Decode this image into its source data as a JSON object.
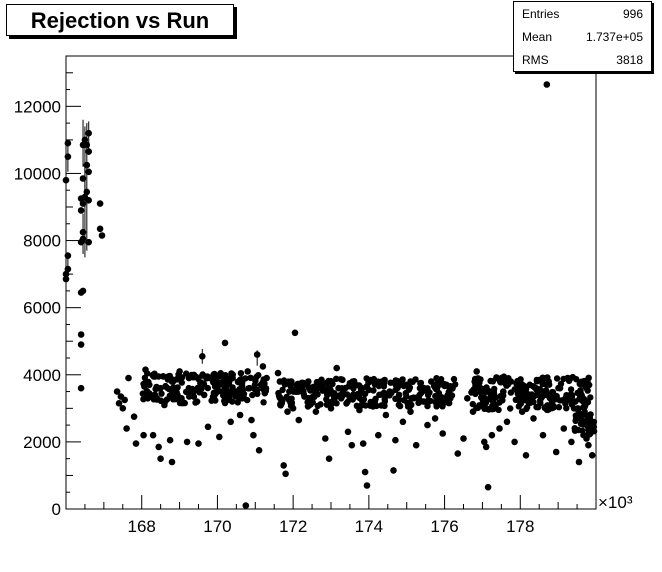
{
  "title": "Rejection vs Run",
  "stats": {
    "entries_label": "Entries",
    "entries_value": "996",
    "mean_label": "Mean",
    "mean_value": "1.737e+05",
    "rms_label": "RMS",
    "rms_value": "3818"
  },
  "chart_data": {
    "type": "scatter",
    "title": "Rejection vs Run",
    "xlabel": "",
    "ylabel": "",
    "x_exponent_label": "×10³",
    "xlim": [
      166.0,
      180.0
    ],
    "ylim": [
      0,
      13500
    ],
    "x_ticks": [
      168,
      170,
      172,
      174,
      176,
      178
    ],
    "y_ticks": [
      0,
      2000,
      4000,
      6000,
      8000,
      10000,
      12000
    ],
    "grid": false,
    "legend": "none",
    "marker_color": "#000000",
    "points": [
      [
        166.0,
        7000
      ],
      [
        166.0,
        6850
      ],
      [
        166.05,
        7550
      ],
      [
        166.05,
        7150
      ],
      [
        166.0,
        9800
      ],
      [
        166.05,
        10500
      ],
      [
        166.05,
        10900
      ],
      [
        166.4,
        3600
      ],
      [
        166.4,
        4900
      ],
      [
        166.4,
        5200
      ],
      [
        166.4,
        6450
      ],
      [
        166.45,
        6500
      ],
      [
        166.4,
        7950
      ],
      [
        166.45,
        8250
      ],
      [
        166.45,
        8050
      ],
      [
        166.4,
        8900
      ],
      [
        166.45,
        9100
      ],
      [
        166.4,
        9250
      ],
      [
        166.45,
        9850
      ],
      [
        166.5,
        9300
      ],
      [
        166.45,
        10850
      ],
      [
        166.5,
        11000
      ],
      [
        166.55,
        10850
      ],
      [
        166.6,
        11200
      ],
      [
        166.55,
        10250
      ],
      [
        166.6,
        10050
      ],
      [
        166.6,
        10650
      ],
      [
        166.55,
        9450
      ],
      [
        166.6,
        9200
      ],
      [
        166.6,
        7950
      ],
      [
        166.9,
        9100
      ],
      [
        166.9,
        8350
      ],
      [
        166.95,
        8150
      ],
      [
        167.35,
        3500
      ],
      [
        167.4,
        3150
      ],
      [
        167.45,
        3350
      ],
      [
        167.5,
        3000
      ],
      [
        167.55,
        3250
      ],
      [
        167.6,
        2400
      ],
      [
        167.65,
        3900
      ],
      [
        167.8,
        2750
      ],
      [
        167.85,
        1950
      ],
      [
        168.05,
        2200
      ],
      [
        168.1,
        4150
      ],
      [
        168.15,
        3400
      ],
      [
        168.2,
        3700
      ],
      [
        168.3,
        2200
      ],
      [
        168.35,
        3950
      ],
      [
        168.4,
        3300
      ],
      [
        168.45,
        1850
      ],
      [
        168.5,
        3600
      ],
      [
        168.5,
        1500
      ],
      [
        168.6,
        3100
      ],
      [
        168.7,
        3950
      ],
      [
        168.75,
        2050
      ],
      [
        168.8,
        3800
      ],
      [
        168.8,
        1400
      ],
      [
        168.9,
        3600
      ],
      [
        169.0,
        4100
      ],
      [
        169.05,
        3300
      ],
      [
        169.2,
        2000
      ],
      [
        169.25,
        3900
      ],
      [
        169.3,
        3550
      ],
      [
        169.5,
        1950
      ],
      [
        169.55,
        3750
      ],
      [
        169.6,
        4550
      ],
      [
        169.65,
        3400
      ],
      [
        169.75,
        2450
      ],
      [
        169.8,
        3900
      ],
      [
        169.9,
        4000
      ],
      [
        170.0,
        3600
      ],
      [
        170.05,
        2150
      ],
      [
        170.15,
        3800
      ],
      [
        170.2,
        4950
      ],
      [
        170.25,
        3300
      ],
      [
        170.35,
        2600
      ],
      [
        170.4,
        3900
      ],
      [
        170.45,
        3500
      ],
      [
        170.6,
        2800
      ],
      [
        170.65,
        3300
      ],
      [
        170.75,
        100
      ],
      [
        170.8,
        4100
      ],
      [
        170.85,
        3600
      ],
      [
        170.9,
        2650
      ],
      [
        170.95,
        2200
      ],
      [
        171.05,
        4600
      ],
      [
        171.1,
        1750
      ],
      [
        171.15,
        3700
      ],
      [
        171.2,
        4250
      ],
      [
        171.25,
        3450
      ],
      [
        171.3,
        3900
      ],
      [
        171.6,
        4050
      ],
      [
        171.65,
        3800
      ],
      [
        171.75,
        1300
      ],
      [
        171.8,
        1050
      ],
      [
        171.85,
        2900
      ],
      [
        171.9,
        3500
      ],
      [
        172.0,
        3000
      ],
      [
        172.05,
        5250
      ],
      [
        172.1,
        3700
      ],
      [
        172.15,
        2650
      ],
      [
        172.3,
        3350
      ],
      [
        172.4,
        3800
      ],
      [
        172.6,
        2900
      ],
      [
        172.75,
        3850
      ],
      [
        172.85,
        2100
      ],
      [
        172.9,
        3400
      ],
      [
        172.95,
        1500
      ],
      [
        173.0,
        3000
      ],
      [
        173.15,
        4200
      ],
      [
        173.2,
        3600
      ],
      [
        173.3,
        3850
      ],
      [
        173.45,
        2300
      ],
      [
        173.5,
        3300
      ],
      [
        173.55,
        1900
      ],
      [
        173.65,
        3700
      ],
      [
        173.75,
        2950
      ],
      [
        173.85,
        1950
      ],
      [
        173.9,
        1100
      ],
      [
        173.95,
        700
      ],
      [
        174.0,
        3550
      ],
      [
        174.15,
        3200
      ],
      [
        174.25,
        2200
      ],
      [
        174.4,
        3750
      ],
      [
        174.45,
        2800
      ],
      [
        174.55,
        3500
      ],
      [
        174.65,
        1150
      ],
      [
        174.7,
        2050
      ],
      [
        174.8,
        3400
      ],
      [
        174.9,
        2600
      ],
      [
        175.0,
        3700
      ],
      [
        175.1,
        2900
      ],
      [
        175.25,
        1900
      ],
      [
        175.35,
        3600
      ],
      [
        175.45,
        3200
      ],
      [
        175.55,
        2500
      ],
      [
        175.65,
        3800
      ],
      [
        175.75,
        2700
      ],
      [
        175.85,
        3450
      ],
      [
        175.95,
        2250
      ],
      [
        176.05,
        3700
      ],
      [
        176.15,
        3300
      ],
      [
        176.35,
        1650
      ],
      [
        176.5,
        2100
      ],
      [
        176.6,
        3300
      ],
      [
        176.75,
        2900
      ],
      [
        176.85,
        4100
      ],
      [
        176.95,
        3600
      ],
      [
        177.05,
        2000
      ],
      [
        177.1,
        1850
      ],
      [
        177.15,
        650
      ],
      [
        177.25,
        2200
      ],
      [
        177.35,
        3100
      ],
      [
        177.45,
        2400
      ],
      [
        177.55,
        3500
      ],
      [
        177.65,
        2600
      ],
      [
        177.75,
        3800
      ],
      [
        177.85,
        2000
      ],
      [
        177.95,
        3300
      ],
      [
        178.05,
        2900
      ],
      [
        178.15,
        1600
      ],
      [
        178.25,
        3700
      ],
      [
        178.35,
        2700
      ],
      [
        178.45,
        3400
      ],
      [
        178.6,
        2200
      ],
      [
        178.7,
        12650
      ],
      [
        178.75,
        3800
      ],
      [
        178.85,
        3100
      ],
      [
        178.95,
        1700
      ],
      [
        179.05,
        3600
      ],
      [
        179.15,
        2400
      ],
      [
        179.25,
        3900
      ],
      [
        179.35,
        2000
      ],
      [
        179.45,
        3200
      ],
      [
        179.55,
        1400
      ],
      [
        179.6,
        2700
      ],
      [
        179.7,
        2900
      ],
      [
        179.75,
        2100
      ],
      [
        179.8,
        1900
      ],
      [
        179.85,
        2300
      ],
      [
        179.9,
        1600
      ]
    ],
    "bands": [
      {
        "x0": 168.0,
        "x1": 171.3,
        "ylo": 3150,
        "yhi": 4050,
        "count": 190
      },
      {
        "x0": 171.6,
        "x1": 176.3,
        "ylo": 3050,
        "yhi": 3900,
        "count": 260
      },
      {
        "x0": 176.7,
        "x1": 179.9,
        "ylo": 2950,
        "yhi": 3950,
        "count": 220
      },
      {
        "x0": 179.4,
        "x1": 179.95,
        "ylo": 2200,
        "yhi": 2900,
        "count": 40
      }
    ],
    "error_bars": [
      [
        166.45,
        10900,
        700
      ],
      [
        166.5,
        10200,
        1200
      ],
      [
        166.55,
        9600,
        1900
      ],
      [
        166.5,
        8900,
        1400
      ],
      [
        166.45,
        8200,
        600
      ],
      [
        166.6,
        11050,
        500
      ],
      [
        166.05,
        10500,
        450
      ],
      [
        166.05,
        7300,
        350
      ],
      [
        169.6,
        4550,
        220
      ],
      [
        171.05,
        4500,
        230
      ]
    ]
  }
}
